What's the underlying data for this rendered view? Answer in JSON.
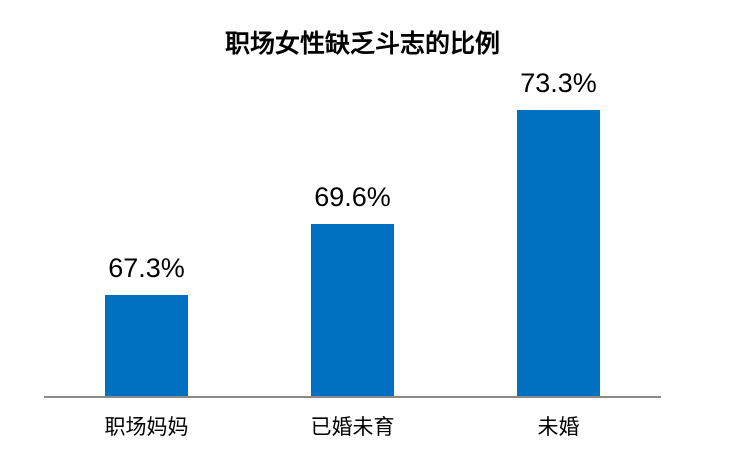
{
  "chart_data": {
    "type": "bar",
    "title": "职场女性缺乏斗志的比例",
    "categories": [
      "职场妈妈",
      "已婚未育",
      "未婚"
    ],
    "values": [
      67.3,
      69.6,
      73.3
    ],
    "value_labels": [
      "67.3%",
      "69.6%",
      "73.3%"
    ],
    "xlabel": "",
    "ylabel": "",
    "ylim": [
      64,
      75
    ],
    "grid": false,
    "legend": "none",
    "background_color": "#ffffff",
    "bar_color": "#0070c0",
    "axis_line_color": "#8a8a8a",
    "text_color": "#000000"
  }
}
